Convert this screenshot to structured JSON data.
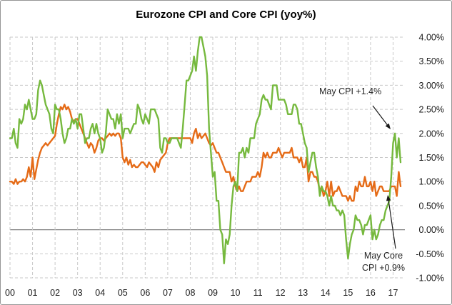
{
  "chart_data": {
    "type": "line",
    "title": "Eurozone CPI and Core CPI (yoy%)",
    "xlabel": "",
    "ylabel": "",
    "frequency": "monthly",
    "x_start": "2000-01",
    "x_end": "2017-05",
    "ylim": [
      -1.0,
      4.0
    ],
    "grid": true,
    "legend_position": "none",
    "x_tick_labels": [
      "00",
      "01",
      "02",
      "03",
      "04",
      "05",
      "06",
      "07",
      "08",
      "09",
      "10",
      "11",
      "12",
      "13",
      "14",
      "15",
      "16",
      "17"
    ],
    "y_ticks": [
      {
        "label": "4.00%",
        "value": 4.0
      },
      {
        "label": "3.50%",
        "value": 3.5
      },
      {
        "label": "3.00%",
        "value": 3.0
      },
      {
        "label": "2.50%",
        "value": 2.5
      },
      {
        "label": "2.00%",
        "value": 2.0
      },
      {
        "label": "1.50%",
        "value": 1.5
      },
      {
        "label": "1.00%",
        "value": 1.0
      },
      {
        "label": "0.50%",
        "value": 0.5
      },
      {
        "label": "0.00%",
        "value": 0.0
      },
      {
        "label": "-0.50%",
        "value": -0.5
      },
      {
        "label": "-1.00%",
        "value": -1.0
      }
    ],
    "series": [
      {
        "name": "Core CPI (yoy%)",
        "color": "#E56B17",
        "values": [
          1.0,
          1.0,
          0.95,
          1.05,
          0.95,
          1.0,
          1.0,
          1.05,
          1.0,
          1.1,
          1.3,
          1.1,
          1.5,
          1.05,
          1.25,
          1.45,
          1.6,
          1.7,
          1.75,
          1.8,
          1.75,
          1.8,
          1.85,
          1.9,
          1.95,
          2.2,
          2.4,
          2.55,
          2.5,
          2.6,
          2.5,
          2.55,
          2.45,
          2.3,
          2.25,
          2.3,
          2.3,
          2.2,
          2.1,
          2.0,
          1.9,
          1.8,
          1.7,
          1.8,
          1.75,
          1.6,
          1.7,
          1.85,
          1.9,
          1.9,
          1.85,
          1.9,
          1.95,
          2.0,
          1.95,
          2.0,
          1.95,
          2.0,
          2.0,
          1.9,
          1.5,
          1.4,
          1.5,
          1.35,
          1.45,
          1.3,
          1.35,
          1.3,
          1.3,
          1.35,
          1.4,
          1.4,
          1.35,
          1.3,
          1.4,
          1.35,
          1.3,
          1.2,
          1.4,
          1.3,
          1.45,
          1.5,
          1.55,
          1.6,
          1.8,
          1.9,
          1.9,
          1.9,
          1.9,
          1.9,
          1.9,
          1.9,
          1.9,
          1.9,
          1.9,
          1.9,
          1.9,
          1.8,
          2.0,
          2.1,
          1.9,
          2.0,
          1.9,
          1.95,
          2.0,
          1.9,
          1.8,
          1.75,
          1.8,
          1.7,
          1.6,
          1.6,
          1.5,
          1.4,
          1.3,
          1.2,
          1.2,
          1.2,
          1.0,
          1.1,
          0.9,
          0.8,
          0.9,
          0.8,
          0.8,
          0.9,
          1.0,
          1.0,
          1.0,
          1.1,
          1.1,
          1.1,
          1.2,
          1.1,
          1.3,
          1.6,
          1.5,
          1.6,
          1.5,
          1.5,
          1.6,
          1.6,
          1.6,
          1.7,
          1.6,
          1.5,
          1.6,
          1.6,
          1.6,
          1.6,
          1.7,
          1.5,
          1.5,
          1.5,
          1.4,
          1.5,
          1.3,
          1.3,
          1.5,
          1.0,
          1.2,
          1.2,
          1.1,
          1.1,
          1.0,
          0.8,
          0.9,
          0.7,
          0.8,
          1.0,
          0.7,
          1.0,
          0.7,
          0.8,
          0.8,
          0.9,
          0.8,
          0.7,
          0.7,
          0.7,
          0.6,
          0.7,
          0.6,
          0.6,
          0.9,
          0.8,
          1.0,
          0.9,
          0.9,
          1.1,
          0.9,
          0.9,
          1.0,
          0.8,
          1.0,
          0.7,
          0.8,
          0.9,
          0.9,
          0.8,
          0.8,
          0.8,
          0.8,
          0.9,
          0.9,
          0.9,
          0.7,
          1.2,
          0.9
        ]
      },
      {
        "name": "CPI (yoy%)",
        "color": "#76B93E",
        "values": [
          1.9,
          1.9,
          2.1,
          1.8,
          1.7,
          2.3,
          2.2,
          2.3,
          2.6,
          2.5,
          2.7,
          2.5,
          2.3,
          2.3,
          2.4,
          2.9,
          3.1,
          3.0,
          2.8,
          2.6,
          2.5,
          2.4,
          2.1,
          2.0,
          2.6,
          2.5,
          2.5,
          2.3,
          2.0,
          1.8,
          1.9,
          2.1,
          2.1,
          2.3,
          2.2,
          2.3,
          2.1,
          2.4,
          2.4,
          2.1,
          1.8,
          1.9,
          1.9,
          2.1,
          2.2,
          2.0,
          2.2,
          2.0,
          1.9,
          1.6,
          1.7,
          2.0,
          2.5,
          2.4,
          2.3,
          2.3,
          2.1,
          2.4,
          2.2,
          2.4,
          1.9,
          2.1,
          2.1,
          2.1,
          2.0,
          2.1,
          2.2,
          2.2,
          2.6,
          2.5,
          2.3,
          2.2,
          2.4,
          2.3,
          2.2,
          2.5,
          2.5,
          2.5,
          2.4,
          2.3,
          1.7,
          1.6,
          1.9,
          1.9,
          1.8,
          1.8,
          1.9,
          1.9,
          1.9,
          1.9,
          1.8,
          1.7,
          2.1,
          2.6,
          3.1,
          3.1,
          3.2,
          3.3,
          3.6,
          3.3,
          3.7,
          4.0,
          4.0,
          3.8,
          3.6,
          3.2,
          2.1,
          1.6,
          1.1,
          1.2,
          0.6,
          0.6,
          0.0,
          -0.1,
          -0.7,
          -0.2,
          -0.3,
          -0.1,
          0.5,
          0.9,
          1.0,
          0.8,
          1.6,
          1.6,
          1.7,
          1.5,
          1.7,
          1.6,
          1.9,
          1.9,
          1.9,
          2.2,
          2.3,
          2.4,
          2.7,
          2.8,
          2.7,
          2.7,
          2.6,
          2.5,
          3.0,
          3.0,
          3.0,
          2.7,
          2.7,
          2.7,
          2.7,
          2.6,
          2.4,
          2.4,
          2.4,
          2.6,
          2.6,
          2.5,
          2.2,
          2.2,
          2.0,
          1.8,
          1.7,
          1.2,
          1.4,
          1.6,
          1.6,
          1.3,
          1.1,
          0.7,
          0.9,
          0.8,
          0.8,
          0.7,
          0.5,
          0.7,
          0.5,
          0.5,
          0.4,
          0.4,
          0.3,
          0.4,
          0.3,
          -0.2,
          -0.6,
          -0.3,
          -0.1,
          0.0,
          0.3,
          0.2,
          0.2,
          0.1,
          -0.1,
          0.1,
          0.1,
          0.2,
          0.3,
          -0.2,
          0.0,
          -0.2,
          -0.1,
          0.1,
          0.2,
          0.2,
          0.4,
          0.5,
          0.6,
          1.1,
          1.8,
          2.0,
          1.5,
          1.9,
          1.4
        ]
      }
    ],
    "annotations": {
      "may_cpi": {
        "text": "May CPI +1.4%"
      },
      "may_core": {
        "line1": "May Core",
        "line2": "CPI +0.9%"
      }
    }
  },
  "colors": {
    "grid": "#C9C9C9",
    "zero_line": "#7F7F7F",
    "border": "#969696",
    "tick_text": "#1A1A1A",
    "arrow": "#1A1A1A"
  }
}
